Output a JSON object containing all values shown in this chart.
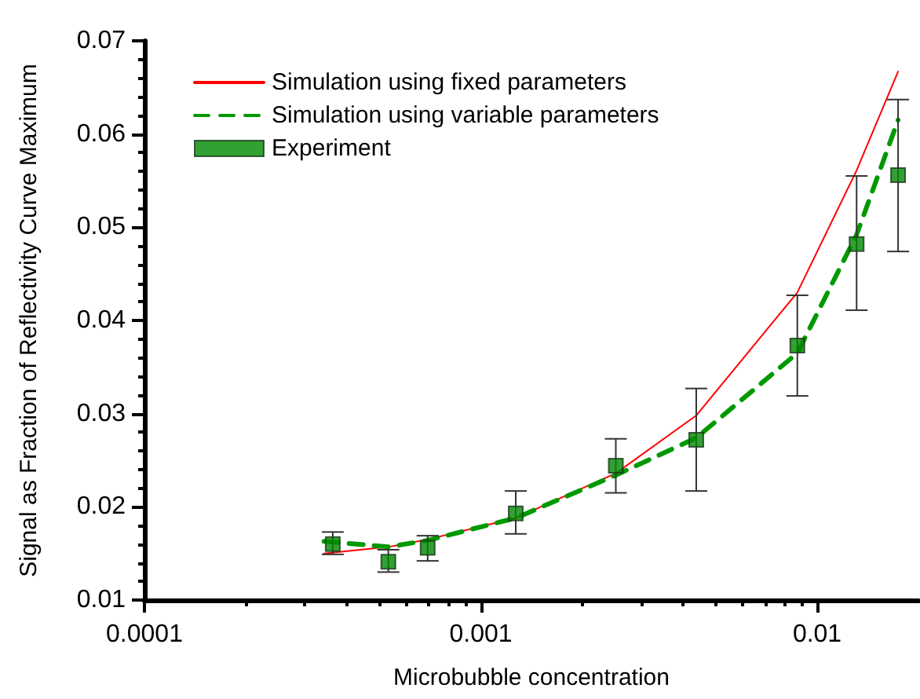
{
  "chart_data": {
    "type": "line",
    "xlabel": "Microbubble concentration",
    "ylabel": "Signal as Fraction of Reflectivity Curve Maximum",
    "log": "x",
    "xlim": [
      0.0001,
      0.02
    ],
    "xticks": [
      0.0001,
      0.001,
      0.01
    ],
    "ylim": [
      0.01,
      0.07
    ],
    "yticks": [
      0.01,
      0.02,
      0.03,
      0.04,
      0.05,
      0.06,
      0.07
    ],
    "grid": false,
    "legend": "top left",
    "series": [
      {
        "name": "Simulation using fixed parameters",
        "color": "#ff0000",
        "line_style": "solid",
        "marker": "none",
        "x": [
          0.000342,
          0.000531,
          0.000695,
          0.00127,
          0.00252,
          0.00437,
          0.00873,
          0.0131,
          0.0174
        ],
        "values": [
          0.015,
          0.0157,
          0.0165,
          0.0188,
          0.0236,
          0.0298,
          0.043,
          0.0561,
          0.0667
        ]
      },
      {
        "name": "Simulation using variable parameters",
        "color": "#009900",
        "line_style": "dashed",
        "marker": "none",
        "x": [
          0.000342,
          0.000531,
          0.000695,
          0.00127,
          0.00252,
          0.00437,
          0.00873,
          0.0131,
          0.0174
        ],
        "values": [
          0.0163,
          0.0157,
          0.0164,
          0.0188,
          0.0234,
          0.0274,
          0.0365,
          0.0492,
          0.0615
        ]
      },
      {
        "name": "Experiment",
        "type": "scatter",
        "color": "#008800",
        "marker": "square",
        "x": [
          0.000363,
          0.000531,
          0.000695,
          0.00127,
          0.00252,
          0.00437,
          0.00873,
          0.0131,
          0.0174
        ],
        "values": [
          0.016,
          0.0141,
          0.0156,
          0.0193,
          0.0244,
          0.0272,
          0.0373,
          0.0482,
          0.0556
        ],
        "errors": [
          [
            0.0149,
            0.0173
          ],
          [
            0.013,
            0.0154
          ],
          [
            0.0142,
            0.0169
          ],
          [
            0.0171,
            0.0217
          ],
          [
            0.0215,
            0.0273
          ],
          [
            0.0217,
            0.0327
          ],
          [
            0.0319,
            0.0427
          ],
          [
            0.0411,
            0.0555
          ],
          [
            0.0474,
            0.0637
          ]
        ]
      }
    ]
  }
}
